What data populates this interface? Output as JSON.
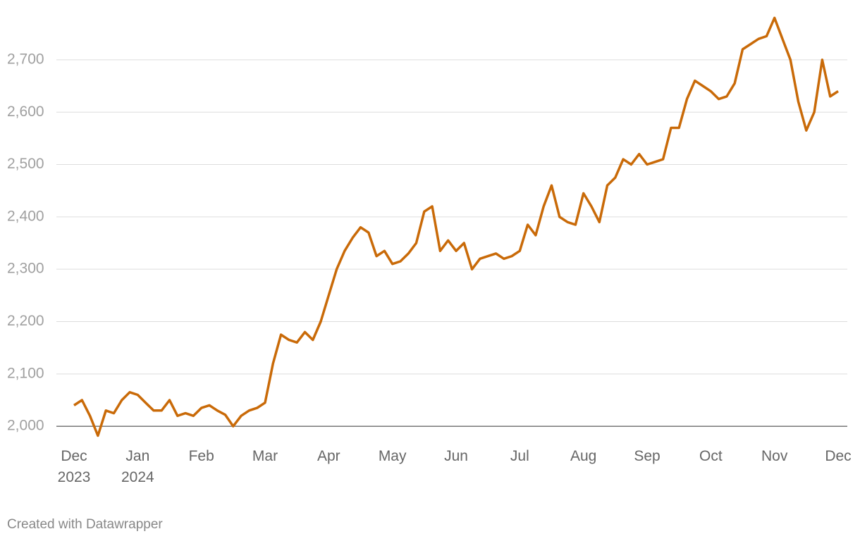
{
  "chart_data": {
    "type": "line",
    "categories": [
      "Dec 2023",
      null,
      null,
      null,
      null,
      null,
      null,
      null,
      "Jan 2024",
      null,
      null,
      null,
      null,
      null,
      null,
      null,
      "Feb",
      null,
      null,
      null,
      null,
      null,
      null,
      null,
      "Mar",
      null,
      null,
      null,
      null,
      null,
      null,
      null,
      "Apr",
      null,
      null,
      null,
      null,
      null,
      null,
      null,
      "May",
      null,
      null,
      null,
      null,
      null,
      null,
      null,
      "Jun",
      null,
      null,
      null,
      null,
      null,
      null,
      null,
      "Jul",
      null,
      null,
      null,
      null,
      null,
      null,
      null,
      "Aug",
      null,
      null,
      null,
      null,
      null,
      null,
      null,
      "Sep",
      null,
      null,
      null,
      null,
      null,
      null,
      null,
      "Oct",
      null,
      null,
      null,
      null,
      null,
      null,
      null,
      "Nov",
      null,
      null,
      null,
      null,
      null,
      null,
      null,
      "Dec"
    ],
    "series": [
      {
        "color": "#c96a08",
        "values": [
          2040,
          2050,
          2020,
          1982,
          2030,
          2025,
          2050,
          2065,
          2060,
          2045,
          2030,
          2030,
          2050,
          2020,
          2025,
          2020,
          2035,
          2040,
          2030,
          2022,
          2000,
          2020,
          2030,
          2035,
          2045,
          2120,
          2175,
          2165,
          2160,
          2180,
          2165,
          2200,
          2250,
          2300,
          2335,
          2360,
          2380,
          2370,
          2325,
          2335,
          2310,
          2315,
          2330,
          2350,
          2410,
          2420,
          2335,
          2355,
          2335,
          2350,
          2300,
          2320,
          2325,
          2330,
          2320,
          2325,
          2335,
          2385,
          2365,
          2420,
          2460,
          2400,
          2390,
          2385,
          2445,
          2420,
          2390,
          2460,
          2475,
          2510,
          2500,
          2520,
          2500,
          2505,
          2510,
          2570,
          2570,
          2625,
          2660,
          2650,
          2640,
          2625,
          2630,
          2655,
          2720,
          2730,
          2740,
          2745,
          2780,
          2740,
          2700,
          2620,
          2565,
          2600,
          2700,
          2630,
          2640
        ]
      }
    ],
    "ylim": [
      1980,
      2790
    ],
    "yticks": [
      {
        "value": 2000,
        "label": "2,000"
      },
      {
        "value": 2100,
        "label": "2,100"
      },
      {
        "value": 2200,
        "label": "2,200"
      },
      {
        "value": 2300,
        "label": "2,300"
      },
      {
        "value": 2400,
        "label": "2,400"
      },
      {
        "value": 2500,
        "label": "2,500"
      },
      {
        "value": 2600,
        "label": "2,600"
      },
      {
        "value": 2700,
        "label": "2,700"
      }
    ],
    "grid": true,
    "footer": "Created with Datawrapper"
  }
}
